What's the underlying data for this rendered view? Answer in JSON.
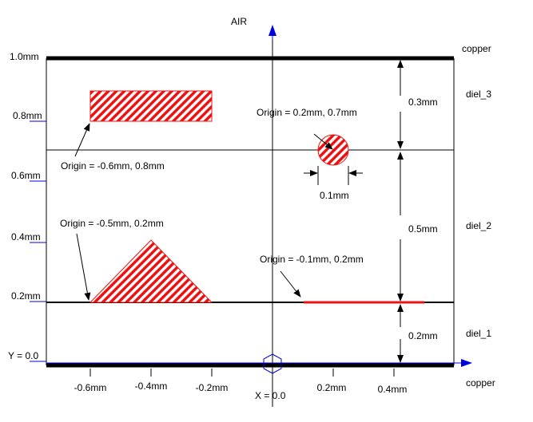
{
  "axis": {
    "top_label": "AIR",
    "y_origin_label": "Y = 0.0",
    "x_origin_label": "X = 0.0"
  },
  "y_ticks": [
    "1.0mm",
    "0.8mm",
    "0.6mm",
    "0.4mm",
    "0.2mm"
  ],
  "x_ticks": [
    "-0.6mm",
    "-0.4mm",
    "-0.2mm",
    "0.2mm",
    "0.4mm"
  ],
  "layers": {
    "top": "copper",
    "diel_3": "diel_3",
    "diel_2": "diel_2",
    "diel_1": "diel_1",
    "bottom": "copper"
  },
  "dimensions": {
    "diel_3": "0.3mm",
    "diel_2": "0.5mm",
    "diel_1": "0.2mm",
    "circle_diameter": "0.1mm"
  },
  "annotations": {
    "rect": "Origin = -0.6mm, 0.8mm",
    "circle": "Origin = 0.2mm, 0.7mm",
    "triangle": "Origin = -0.5mm, 0.2mm",
    "strip": "Origin = -0.1mm, 0.2mm"
  },
  "colors": {
    "conductor": "#ee1111",
    "axis": "#0000dd",
    "copper": "#000000"
  }
}
